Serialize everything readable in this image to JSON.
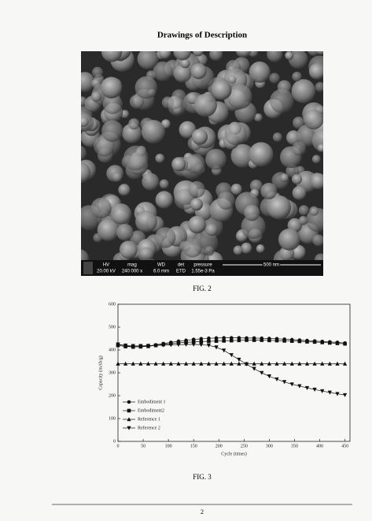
{
  "title": "Drawings of Description",
  "sem": {
    "labels": [
      "HV",
      "mag",
      "WD",
      "det",
      "pressure"
    ],
    "values": [
      "20.00 kV",
      "240 000 x",
      "6.0 mm",
      "ETD",
      "1.55e-3 Pa"
    ],
    "scale": "500 nm"
  },
  "fig2_caption": "FIG. 2",
  "chart_data": {
    "type": "line",
    "xlabel": "Cycle (times)",
    "ylabel": "Capacity (mAh/g)",
    "x": [
      0,
      15,
      30,
      45,
      60,
      75,
      90,
      105,
      120,
      135,
      150,
      165,
      180,
      195,
      210,
      225,
      240,
      255,
      270,
      285,
      300,
      315,
      330,
      345,
      360,
      375,
      390,
      405,
      420,
      435,
      450
    ],
    "xlim": [
      0,
      460
    ],
    "xticks": [
      0,
      50,
      100,
      150,
      200,
      250,
      300,
      350,
      400,
      450
    ],
    "ylim": [
      0,
      600
    ],
    "yticks": [
      0,
      100,
      200,
      300,
      400,
      500,
      600
    ],
    "legend": "lower left",
    "series": [
      {
        "name": "Embodiment 1",
        "color": "#111111",
        "marker": "circle",
        "values": [
          425,
          418,
          415,
          415,
          418,
          422,
          428,
          433,
          438,
          442,
          446,
          449,
          451,
          452,
          453,
          453,
          453,
          452,
          452,
          451,
          450,
          449,
          447,
          445,
          443,
          441,
          439,
          437,
          435,
          433,
          430
        ]
      },
      {
        "name": "Embodiment2",
        "color": "#111111",
        "marker": "square",
        "values": [
          420,
          415,
          413,
          414,
          416,
          420,
          424,
          428,
          431,
          433,
          435,
          437,
          438,
          439,
          440,
          441,
          442,
          443,
          443,
          443,
          442,
          441,
          440,
          439,
          438,
          436,
          435,
          433,
          431,
          429,
          427
        ]
      },
      {
        "name": "Reference 1",
        "color": "#111111",
        "marker": "triangle",
        "values": [
          340,
          340,
          340,
          340,
          340,
          340,
          340,
          340,
          340,
          340,
          340,
          340,
          340,
          340,
          340,
          340,
          340,
          340,
          340,
          340,
          340,
          340,
          340,
          340,
          340,
          340,
          340,
          340,
          340,
          340,
          340
        ]
      },
      {
        "name": "Reference 2",
        "color": "#111111",
        "marker": "triangle-down",
        "values": [
          425,
          420,
          418,
          418,
          419,
          420,
          421,
          422,
          423,
          424,
          424,
          423,
          420,
          412,
          398,
          378,
          358,
          338,
          318,
          300,
          285,
          272,
          260,
          250,
          242,
          234,
          227,
          220,
          214,
          208,
          203
        ]
      }
    ]
  },
  "fig3_caption": "FIG. 3",
  "page_number": "2"
}
